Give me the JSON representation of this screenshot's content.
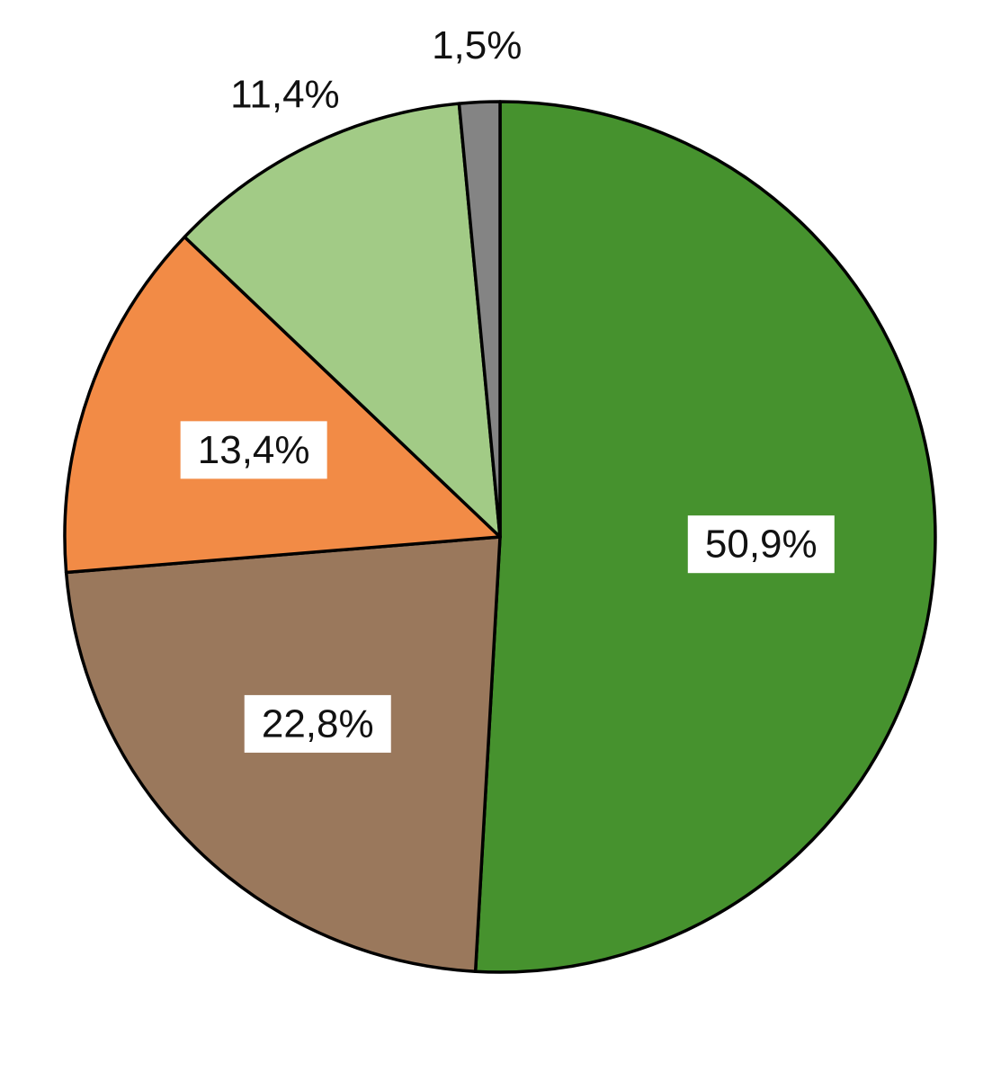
{
  "chart_data": {
    "type": "pie",
    "title": "",
    "start_angle_deg": 0,
    "direction": "clockwise",
    "slices": [
      {
        "label": "50,9%",
        "value": 50.9,
        "color": "#46922E",
        "label_style": "boxed-inside"
      },
      {
        "label": "22,8%",
        "value": 22.8,
        "color": "#9A785C",
        "label_style": "boxed-inside"
      },
      {
        "label": "13,4%",
        "value": 13.4,
        "color": "#F28B46",
        "label_style": "boxed-inside"
      },
      {
        "label": "11,4%",
        "value": 11.4,
        "color": "#A2CB86",
        "label_style": "outside"
      },
      {
        "label": "1,5%",
        "value": 1.5,
        "color": "#848484",
        "label_style": "outside"
      }
    ]
  }
}
